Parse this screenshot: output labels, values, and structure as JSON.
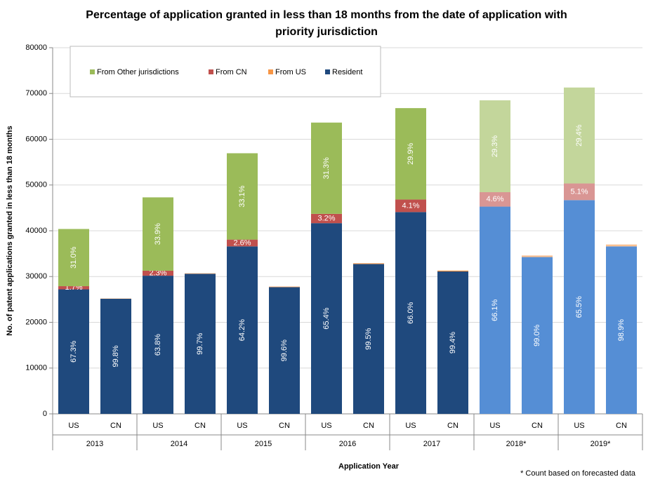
{
  "chart_data": {
    "type": "stacked-bar",
    "title": "Percentage of application granted in less than 18 months  from the date of application with priority jurisdiction",
    "x_label": "Application Year",
    "y_label": "No. of patent applications  granted in less than 18 months",
    "footnote": "* Count based on forecasted data",
    "categories": [
      "US",
      "CN",
      "US",
      "CN",
      "US",
      "CN",
      "US",
      "CN",
      "US",
      "CN",
      "US",
      "CN",
      "US",
      "CN"
    ],
    "groups": [
      "2013",
      "2014",
      "2015",
      "2016",
      "2017",
      "2018*",
      "2019*"
    ],
    "forecast": [
      false,
      false,
      false,
      false,
      false,
      false,
      false,
      false,
      false,
      false,
      true,
      true,
      true,
      true
    ],
    "series": [
      {
        "name": "Resident",
        "color": "#1f497d",
        "forecast_color": "#558ed5",
        "values": [
          27200,
          25150,
          30180,
          30610,
          36590,
          27690,
          41660,
          32740,
          44090,
          31110,
          45280,
          34250,
          46700,
          36590
        ],
        "percent_labels": [
          "67.3%",
          "99.8%",
          "63.8%",
          "99.7%",
          "64.2%",
          "99.6%",
          "65.4%",
          "99.5%",
          "66.0%",
          "99.4%",
          "66.1%",
          "99.0%",
          "65.5%",
          "98.9%"
        ]
      },
      {
        "name": "From US",
        "color": "#f79646",
        "forecast_color": "#fac090",
        "values": [
          0,
          50,
          0,
          90,
          0,
          110,
          0,
          160,
          0,
          190,
          0,
          350,
          0,
          410
        ],
        "percent_labels": [
          null,
          null,
          null,
          null,
          null,
          null,
          null,
          null,
          null,
          null,
          null,
          null,
          null,
          null
        ]
      },
      {
        "name": "From CN",
        "color": "#c0504d",
        "forecast_color": "#d99694",
        "values": [
          690,
          0,
          1090,
          0,
          1480,
          0,
          2040,
          0,
          2740,
          0,
          3150,
          0,
          3640,
          0
        ],
        "percent_labels": [
          "1.7%",
          null,
          "2.3%",
          null,
          "2.6%",
          null,
          "3.2%",
          null,
          "4.1%",
          null,
          "4.6%",
          null,
          "5.1%",
          null
        ]
      },
      {
        "name": "From Other jurisdictions",
        "color": "#9bbb59",
        "forecast_color": "#c3d69b",
        "values": [
          12500,
          0,
          16030,
          0,
          18870,
          0,
          19940,
          0,
          19970,
          0,
          20070,
          0,
          20960,
          0
        ],
        "percent_labels": [
          "31.0%",
          null,
          "33.9%",
          null,
          "33.1%",
          null,
          "31.3%",
          null,
          "29.9%",
          null,
          "29.3%",
          null,
          "29.4%",
          null
        ]
      }
    ],
    "ylim": [
      0,
      80000
    ],
    "yticks": [
      0,
      10000,
      20000,
      30000,
      40000,
      50000,
      60000,
      70000,
      80000
    ],
    "grid": true
  }
}
